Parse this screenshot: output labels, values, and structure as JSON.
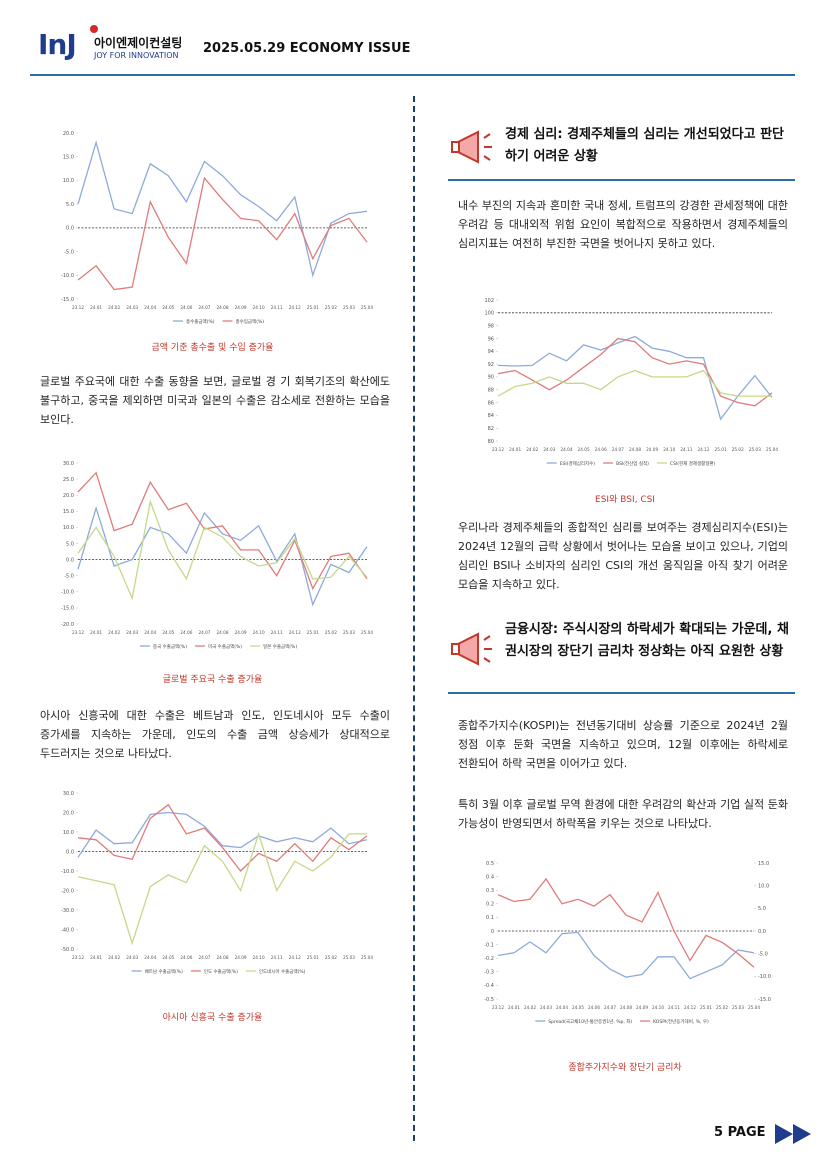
{
  "header": {
    "logo": "InJ",
    "company": "아이엔제이컨설팅",
    "slogan": "JOY FOR INNOVATION",
    "issue": "2025.05.29 ECONOMY ISSUE"
  },
  "left": {
    "p1": "글로벌 주요국에 대한 수출 동향을 보면, 글로벌 경 기 회복기조의 확산에도 불구하고, 중국을 제외하면 미국과 일본의 수출은 감소세로 전환하는 모습을 보인다.",
    "p2": "아시아 신흥국에 대한 수출은 베트남과 인도, 인도네시아 모두 수출이 증가세를 지속하는 가운데, 인도의 수출 금액 상승세가 상대적으로 두드러지는 것으로 나타났다."
  },
  "right": {
    "h1": "경제 심리:  경제주체들의 심리는 개선되었다고 판단하기 어려운 상황",
    "p1": "내수 부진의 지속과 혼미한 국내 정세, 트럼프의 강경한 관세정책에 대한 우려감 등 대내외적 위험 요인이 복합적으로 작용하면서 경제주체들의 심리지표는 여전히 부진한 국면을 벗어나지 못하고 있다.",
    "p2": "우리나라 경제주체들의 종합적인 심리를 보여주는 경제심리지수(ESI)는 2024년 12월의 급락 상황에서 벗어나는 모습을 보이고 있으나, 기업의 심리인 BSI나 소비자의 심리인 CSI의 개선 움직임을 아직 찾기 어려운 모습을 지속하고 있다.",
    "h2": "금융시장: 주식시장의 하락세가 확대되는 가운데, 채권시장의 장단기 금리차 정상화는 아직 요원한 상황",
    "p3": "종합주가지수(KOSPI)는 전년동기대비 상승률 기준으로 2024년 2월 정점 이후 둔화 국면을 지속하고 있으며, 12월 이후에는 하락세로 전환되어 하락 국면을 이어가고 있다.",
    "p4": "특히 3월 이후 글로벌 무역 환경에 대한 우려감의 확산과 기업 실적 둔화 가능성이 반영되면서 하락폭을 키우는 것으로 나타났다."
  },
  "footer": {
    "page": "5 PAGE"
  },
  "chart_data": [
    {
      "type": "line",
      "title": "금액 기준 총수출 및 수입 증가율",
      "categories": [
        "23.12",
        "24.01",
        "24.02",
        "24.03",
        "24.04",
        "24.05",
        "24.06",
        "24.07",
        "24.08",
        "24.09",
        "24.10",
        "24.11",
        "24.12",
        "25.01",
        "25.02",
        "25.03",
        "25.04"
      ],
      "series": [
        {
          "name": "총수출금액(%)",
          "color": "#8eaadb",
          "values": [
            5,
            18,
            4,
            3,
            13.5,
            11,
            5.5,
            14,
            11,
            7,
            4.5,
            1.5,
            6.5,
            -10,
            1,
            3,
            3.5
          ]
        },
        {
          "name": "총수입금액(%)",
          "color": "#e07b7b",
          "values": [
            -11,
            -8,
            -13,
            -12.5,
            5.5,
            -2,
            -7.5,
            10.5,
            6,
            2,
            1.5,
            -2.5,
            3,
            -6.5,
            0.5,
            2,
            -3
          ]
        }
      ],
      "ylim": [
        -15,
        20
      ],
      "yticks": [
        {
          "value": 20,
          "label": "20.0"
        },
        {
          "value": 15,
          "label": "15.0"
        },
        {
          "value": 10,
          "label": "10.0"
        },
        {
          "value": 5,
          "label": "5.0"
        },
        {
          "value": 0,
          "label": "0.0"
        },
        {
          "value": -5,
          "label": "-5.0"
        },
        {
          "value": -10,
          "label": "-10.0"
        },
        {
          "value": -15,
          "label": "-15.0"
        }
      ],
      "reference_line": 0
    },
    {
      "type": "line",
      "title": "글로벌 주요국 수출 증가율",
      "categories": [
        "23.12",
        "24.01",
        "24.02",
        "24.03",
        "24.04",
        "24.05",
        "24.06",
        "24.07",
        "24.08",
        "24.09",
        "24.10",
        "24.11",
        "24.12",
        "25.01",
        "25.02",
        "25.03",
        "25.04"
      ],
      "series": [
        {
          "name": "중국 수출금액(%)",
          "color": "#8eaadb",
          "values": [
            -3,
            16,
            -2,
            0,
            10,
            8,
            2,
            14.5,
            8,
            6,
            10.5,
            -0.5,
            8,
            -14,
            -1.5,
            -4,
            4
          ]
        },
        {
          "name": "미국 수출금액(%)",
          "color": "#e07b7b",
          "values": [
            21,
            27,
            9,
            11,
            24,
            15.5,
            17.5,
            9.5,
            10.5,
            3,
            3,
            -5,
            6,
            -9,
            1,
            2,
            -6
          ]
        },
        {
          "name": "일본 수출금액(%)",
          "color": "#c5d88a",
          "values": [
            2,
            10,
            1,
            -12,
            18,
            3,
            -6,
            10,
            7,
            1,
            -2,
            -1,
            6.5,
            -6,
            -5.5,
            1,
            -5.5
          ]
        }
      ],
      "ylim": [
        -20,
        30
      ],
      "yticks": [
        {
          "value": 30,
          "label": "30.0"
        },
        {
          "value": 25,
          "label": "25.0"
        },
        {
          "value": 20,
          "label": "20.0"
        },
        {
          "value": 15,
          "label": "15.0"
        },
        {
          "value": 10,
          "label": "10.0"
        },
        {
          "value": 5,
          "label": "5.0"
        },
        {
          "value": 0,
          "label": "0.0"
        },
        {
          "value": -5,
          "label": "-5.0"
        },
        {
          "value": -10,
          "label": "-10.0"
        },
        {
          "value": -15,
          "label": "-15.0"
        },
        {
          "value": -20,
          "label": "-20.0"
        }
      ],
      "reference_line": 0
    },
    {
      "type": "line",
      "title": "아시아 신흥국 수출 증가율",
      "categories": [
        "23.12",
        "24.01",
        "24.02",
        "24.03",
        "24.04",
        "24.05",
        "24.06",
        "24.07",
        "24.08",
        "24.09",
        "24.10",
        "24.11",
        "24.12",
        "25.01",
        "25.02",
        "25.03",
        "25.04"
      ],
      "series": [
        {
          "name": "베트남 수출금액(%)",
          "color": "#8eaadb",
          "values": [
            -3,
            11,
            4,
            4.5,
            19,
            20,
            19,
            13,
            3,
            2,
            8,
            5,
            7,
            5,
            12,
            4,
            6
          ]
        },
        {
          "name": "인도 수출금액(%)",
          "color": "#e07b7b",
          "values": [
            7,
            6,
            -2,
            -4,
            17,
            24,
            9,
            12,
            2,
            -10,
            -1,
            -5,
            4,
            -5,
            7,
            1,
            8
          ]
        },
        {
          "name": "인도네시아 수출금액(%)",
          "color": "#c5d88a",
          "values": [
            -13,
            -15,
            -17,
            -47,
            -18,
            -12,
            -16,
            3,
            -5,
            -20,
            9,
            -20,
            -5,
            -10,
            -3,
            9,
            9
          ]
        }
      ],
      "ylim": [
        -50,
        30
      ],
      "yticks": [
        {
          "value": 30,
          "label": "30.0"
        },
        {
          "value": 20,
          "label": "20.0"
        },
        {
          "value": 10,
          "label": "10.0"
        },
        {
          "value": 0,
          "label": "0.0"
        },
        {
          "value": -10,
          "label": "-10.0"
        },
        {
          "value": -20,
          "label": "-20.0"
        },
        {
          "value": -30,
          "label": "-30.0"
        },
        {
          "value": -40,
          "label": "-40.0"
        },
        {
          "value": -50,
          "label": "-50.0"
        }
      ],
      "reference_line": 0
    },
    {
      "type": "line",
      "title": "ESI와 BSI, CSI",
      "categories": [
        "23.12",
        "24.01",
        "24.02",
        "24.03",
        "24.04",
        "24.05",
        "24.06",
        "24.07",
        "24.08",
        "24.09",
        "24.10",
        "24.11",
        "24.12",
        "25.01",
        "25.02",
        "25.03",
        "25.04"
      ],
      "series": [
        {
          "name": "ESI(경제심리지수)",
          "color": "#8eaadb",
          "values": [
            91.8,
            91.7,
            91.8,
            93.7,
            92.5,
            95,
            94.2,
            95.3,
            96.3,
            94.5,
            94,
            93,
            93,
            83.4,
            87,
            90.2,
            86.8
          ]
        },
        {
          "name": "BSI(전산업 실적)",
          "color": "#e07b7b",
          "values": [
            90.5,
            91,
            89.5,
            88,
            89.5,
            91.5,
            93.5,
            96,
            95.5,
            93,
            92,
            92.5,
            92,
            87,
            86,
            85.5,
            87.5
          ]
        },
        {
          "name": "CSI(현재 경제생활형편)",
          "color": "#c5d88a",
          "values": [
            87,
            88.5,
            89,
            90,
            89,
            89,
            88,
            90,
            91,
            90,
            90,
            90,
            91,
            87.5,
            87,
            87,
            87
          ]
        }
      ],
      "ylim": [
        80,
        102
      ],
      "yticks": [
        102,
        100,
        98,
        96,
        94,
        92,
        90,
        88,
        86,
        84,
        82,
        80
      ],
      "reference_line": 100
    },
    {
      "type": "line",
      "title": "종합주가지수와 장단기 금리차",
      "categories": [
        "23.12",
        "24.01",
        "24.02",
        "24.03",
        "24.04",
        "24.05",
        "24.06",
        "24.07",
        "24.08",
        "24.09",
        "24.10",
        "24.11",
        "24.12",
        "25.01",
        "25.02",
        "25.03",
        "25.04"
      ],
      "series": [
        {
          "name": "Spread(국고채10년-통안증권1년, %p, 좌)",
          "color": "#8eaadb",
          "values": [
            -0.18,
            -0.16,
            -0.08,
            -0.16,
            -0.02,
            -0.01,
            -0.18,
            -0.28,
            -0.34,
            -0.32,
            -0.19,
            -0.19,
            -0.35,
            -0.3,
            -0.25,
            -0.14,
            -0.16
          ]
        },
        {
          "name": "KOSPI(전년동기대비, %, 우)",
          "color": "#e07b7b",
          "axis": "y2",
          "values": [
            8,
            6.5,
            7,
            11.5,
            6,
            7,
            5.5,
            8,
            3.5,
            2,
            8.5,
            0,
            -6.5,
            -1,
            -2.5,
            -5,
            -8
          ]
        }
      ],
      "ylim": [
        -0.5,
        0.5
      ],
      "yticks": [
        0.5,
        0.4,
        0.3,
        0.2,
        0.1,
        0,
        -0.1,
        -0.2,
        -0.3,
        -0.4,
        -0.5
      ],
      "y2lim": [
        -15,
        15
      ],
      "y2ticks": [
        {
          "value": 15,
          "label": "15.0"
        },
        {
          "value": 10,
          "label": "10.0"
        },
        {
          "value": 5,
          "label": "5.0"
        },
        {
          "value": 0,
          "label": "0.0"
        },
        {
          "value": -5,
          "label": "-5.0"
        },
        {
          "value": -10,
          "label": "-10.0"
        },
        {
          "value": -15,
          "label": "-15.0"
        }
      ],
      "reference_line": 0
    }
  ]
}
